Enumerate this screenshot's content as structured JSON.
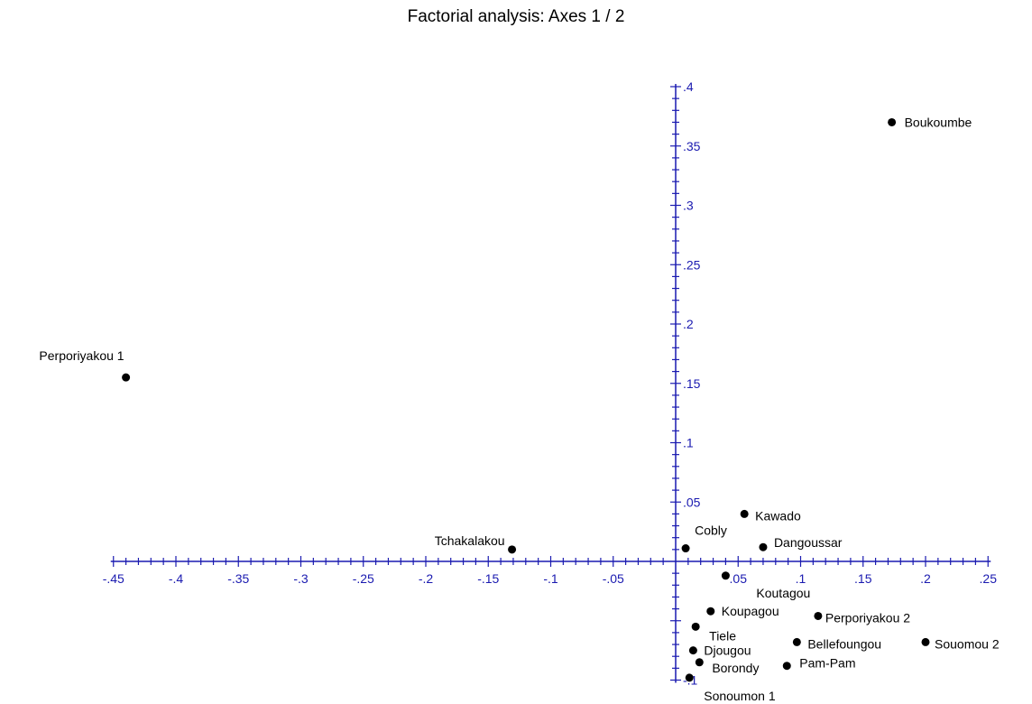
{
  "chart_data": {
    "type": "scatter",
    "title": "Factorial analysis: Axes 1 / 2",
    "xlabel": "",
    "ylabel": "",
    "xlim": [
      -0.45,
      0.25
    ],
    "ylim": [
      -0.1,
      0.4
    ],
    "x_ticks": [
      "-.45",
      "-.4",
      "-.35",
      "-.3",
      "-.25",
      "-.2",
      "-.15",
      "-.1",
      "-.05",
      ".05",
      ".1",
      ".15",
      ".2",
      ".25"
    ],
    "y_ticks": [
      "-.1",
      ".05",
      ".1",
      ".15",
      ".2",
      ".25",
      ".3",
      ".35",
      ".4"
    ],
    "grid": false,
    "points": [
      {
        "label": "Boukoumbe",
        "x": 0.173,
        "y": 0.37
      },
      {
        "label": "Perporiyakou 1",
        "x": -0.44,
        "y": 0.155
      },
      {
        "label": "Tchakalakou",
        "x": -0.131,
        "y": 0.01
      },
      {
        "label": "Cobly",
        "x": 0.008,
        "y": 0.011
      },
      {
        "label": "Kawado",
        "x": 0.055,
        "y": 0.04
      },
      {
        "label": "Dangoussar",
        "x": 0.07,
        "y": 0.012
      },
      {
        "label": "Koutagou",
        "x": 0.04,
        "y": -0.012
      },
      {
        "label": "Koupagou",
        "x": 0.028,
        "y": -0.042
      },
      {
        "label": "Perporiyakou 2",
        "x": 0.114,
        "y": -0.046
      },
      {
        "label": "Tiele",
        "x": 0.016,
        "y": -0.055
      },
      {
        "label": "Bellefoungou",
        "x": 0.097,
        "y": -0.068
      },
      {
        "label": "Souomou 2",
        "x": 0.2,
        "y": -0.068
      },
      {
        "label": "Djougou",
        "x": 0.014,
        "y": -0.075
      },
      {
        "label": "Borondy",
        "x": 0.019,
        "y": -0.085
      },
      {
        "label": "Pam-Pam",
        "x": 0.089,
        "y": -0.088
      },
      {
        "label": "Sonoumon 1",
        "x": 0.011,
        "y": -0.098
      }
    ]
  }
}
